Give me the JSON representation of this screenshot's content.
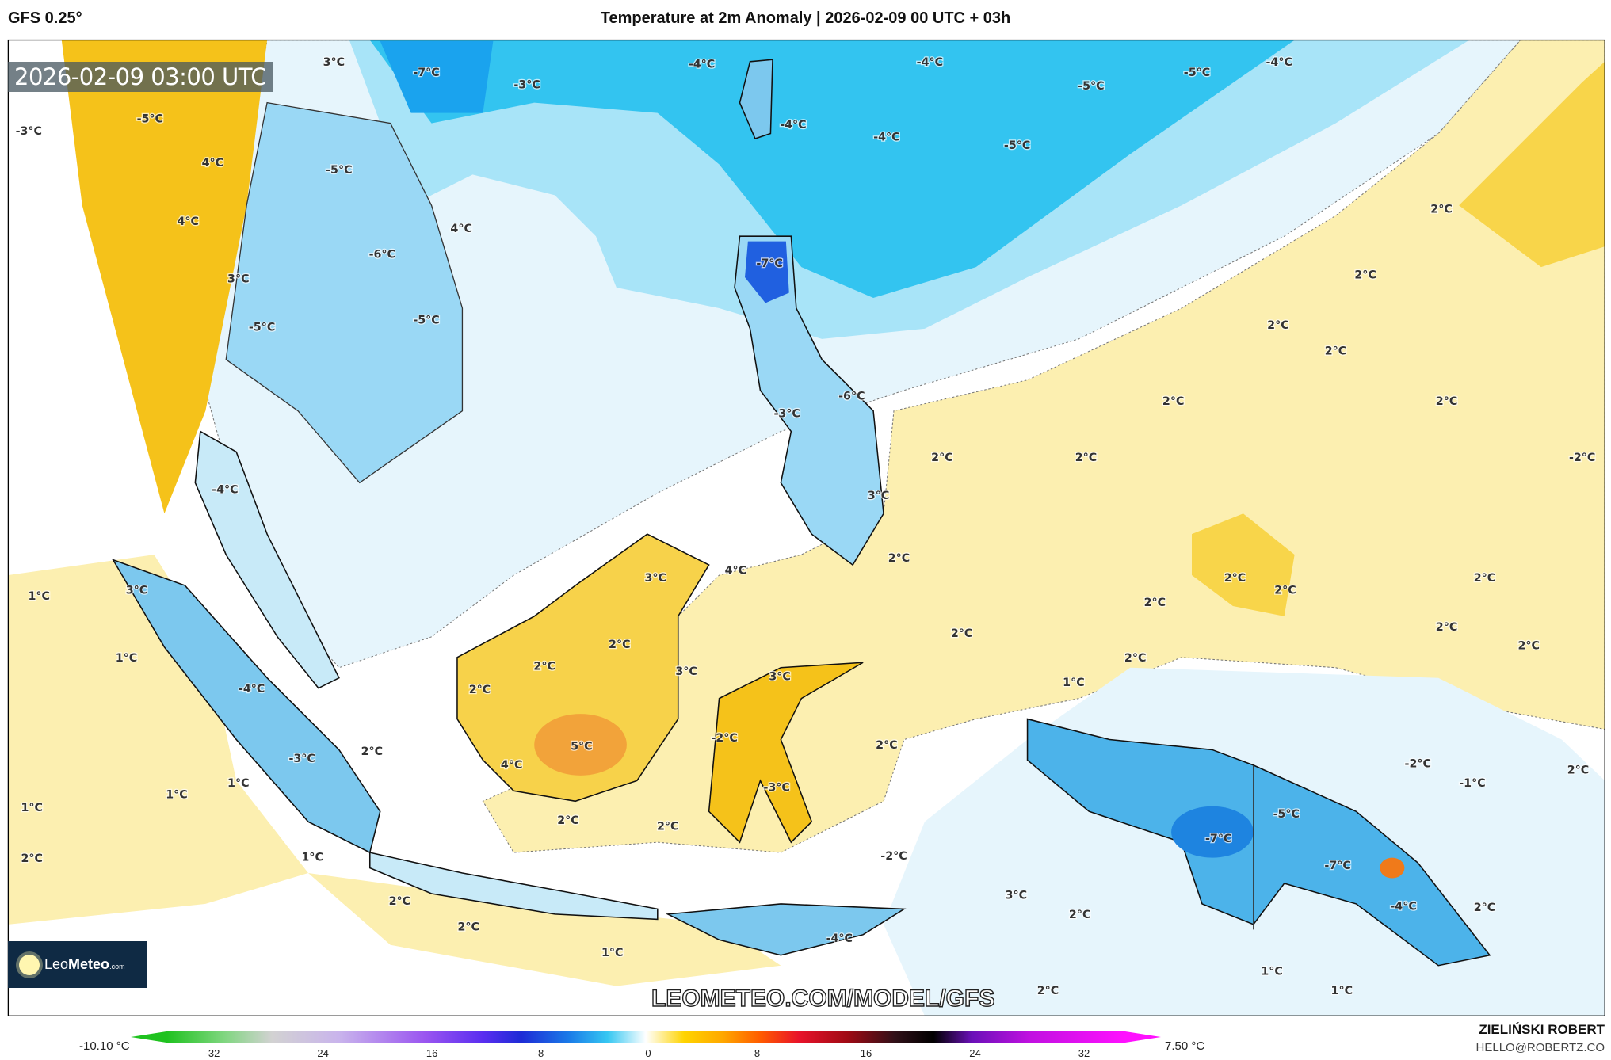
{
  "header": {
    "model": "GFS 0.25°",
    "title": "Temperature at 2m Anomaly | 2026-02-09 00 UTC + 03h"
  },
  "map": {
    "valid_time": "2026-02-09 03:00 UTC",
    "watermark": "LEOMETEO.COM/MODEL/GFS",
    "labels": [
      "3°C",
      "-7°C",
      "-3°C",
      "-4°C",
      "-4°C",
      "-5°C",
      "-5°C",
      "-4°C",
      "-3°C",
      "-5°C",
      "-4°C",
      "-4°C",
      "-5°C",
      "4°C",
      "-5°C",
      "4°C",
      "4°C",
      "2°C",
      "-6°C",
      "-7°C",
      "3°C",
      "2°C",
      "-5°C",
      "-5°C",
      "2°C",
      "2°C",
      "-6°C",
      "2°C",
      "2°C",
      "-3°C",
      "2°C",
      "2°C",
      "-2°C",
      "-4°C",
      "3°C",
      "2°C",
      "4°C",
      "3°C",
      "2°C",
      "2°C",
      "2°C",
      "3°C",
      "1°C",
      "2°C",
      "2°C",
      "2°C",
      "2°C",
      "2°C",
      "1°C",
      "2°C",
      "3°C",
      "2°C",
      "3°C",
      "1°C",
      "2°C",
      "-4°C",
      "5°C",
      "-2°C",
      "2°C",
      "2°C",
      "-3°C",
      "-2°C",
      "2°C",
      "4°C",
      "1°C",
      "-1°C",
      "-3°C",
      "1°C",
      "-5°C",
      "1°C",
      "2°C",
      "2°C",
      "-7°C",
      "-7°C",
      "-2°C",
      "1°C",
      "2°C",
      "-4°C",
      "3°C",
      "2°C",
      "2°C",
      "2°C",
      "2°C",
      "-4°C",
      "1°C",
      "1°C",
      "1°C",
      "2°C"
    ]
  },
  "logo": {
    "brand_light": "Leo",
    "brand_bold": "Meteo",
    "suffix": ".com"
  },
  "colorbar": {
    "min_label": "-10.10 °C",
    "max_label": "7.50 °C",
    "ticks": [
      "-32",
      "-24",
      "-16",
      "-8",
      "0",
      "8",
      "16",
      "24",
      "32"
    ],
    "colors": {
      "cold_end": "#1fc21f",
      "zero": "#ffffff",
      "warm_end": "#ff10ff"
    }
  },
  "credits": {
    "author": "ZIELIŃSKI ROBERT",
    "email": "HELLO@ROBERTZ.CO"
  },
  "colors": {
    "cyan": "#33c4f0",
    "light_blue": "#e6f5fc",
    "yellow": "#fcefb0",
    "gold": "#f5c21a",
    "orange": "#f2a33a",
    "blue": "#2f8fe6"
  }
}
